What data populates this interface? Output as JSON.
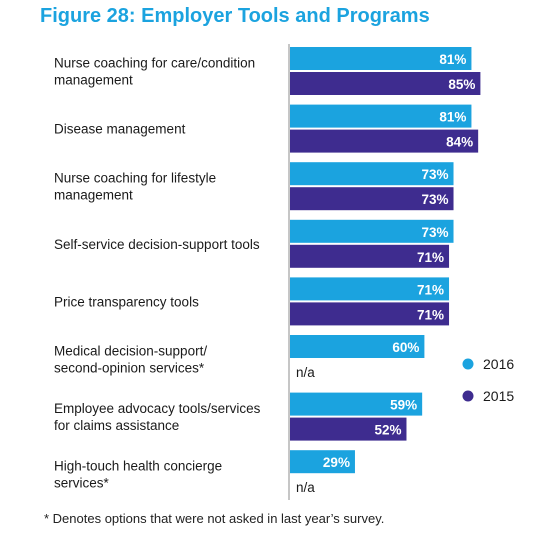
{
  "title": "Figure 28: Employer Tools and Programs",
  "footnote": "* Denotes options that were not asked in last year’s survey.",
  "na_text": "n/a",
  "colors": {
    "s2016": "#1ba3df",
    "s2015": "#3e2c8f"
  },
  "chart_data": {
    "type": "bar",
    "orientation": "horizontal",
    "title": "Figure 28: Employer Tools and Programs",
    "categories": [
      [
        "Nurse coaching for care/condition",
        "management"
      ],
      [
        "Disease management"
      ],
      [
        "Nurse coaching for lifestyle",
        "management"
      ],
      [
        "Self-service decision-support tools"
      ],
      [
        "Price transparency tools"
      ],
      [
        "Medical decision-support/",
        "second-opinion services*"
      ],
      [
        "Employee advocacy tools/services",
        "for claims assistance"
      ],
      [
        "High-touch health concierge",
        "services*"
      ]
    ],
    "series": [
      {
        "name": "2016",
        "values": [
          81,
          81,
          73,
          73,
          71,
          60,
          59,
          29
        ],
        "labels": [
          "81%",
          "81%",
          "73%",
          "73%",
          "71%",
          "60%",
          "59%",
          "29%"
        ]
      },
      {
        "name": "2015",
        "values": [
          85,
          84,
          73,
          71,
          71,
          null,
          52,
          null
        ],
        "labels": [
          "85%",
          "84%",
          "73%",
          "71%",
          "71%",
          "",
          "52%",
          ""
        ]
      }
    ],
    "xlim": [
      0,
      100
    ],
    "grid": false,
    "legend_position": "right"
  }
}
